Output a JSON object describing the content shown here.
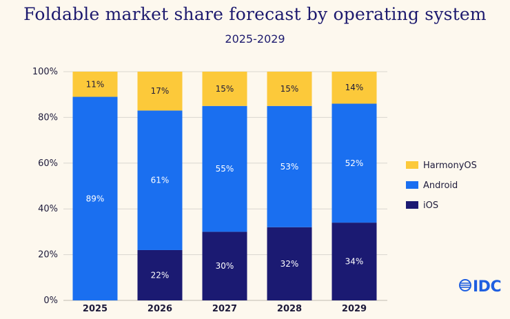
{
  "chart_data": {
    "type": "stacked-bar",
    "title": "Foldable market share forecast by operating system",
    "subtitle": "2025-2029",
    "categories": [
      "2025",
      "2026",
      "2027",
      "2028",
      "2029"
    ],
    "y_ticks": [
      "0%",
      "20%",
      "40%",
      "60%",
      "80%",
      "100%"
    ],
    "ylim": [
      0,
      100
    ],
    "series": [
      {
        "name": "iOS",
        "color": "#1b1a72",
        "label_color": "#ffffff",
        "values": [
          0,
          22,
          30,
          32,
          34
        ],
        "labels": [
          "",
          "22%",
          "30%",
          "32%",
          "34%"
        ]
      },
      {
        "name": "Android",
        "color": "#1a6ff0",
        "label_color": "#ffffff",
        "values": [
          89,
          61,
          55,
          53,
          52
        ],
        "labels": [
          "89%",
          "61%",
          "55%",
          "53%",
          "52%"
        ]
      },
      {
        "name": "HarmonyOS",
        "color": "#fcc93a",
        "label_color": "#1d1a3a",
        "values": [
          11,
          17,
          15,
          15,
          14
        ],
        "labels": [
          "11%",
          "17%",
          "15%",
          "15%",
          "14%"
        ]
      }
    ],
    "legend": {
      "position": "right",
      "order": [
        "HarmonyOS",
        "Android",
        "iOS"
      ]
    }
  },
  "brand": {
    "logo_text": "IDC",
    "color": "#1f5fe0"
  }
}
